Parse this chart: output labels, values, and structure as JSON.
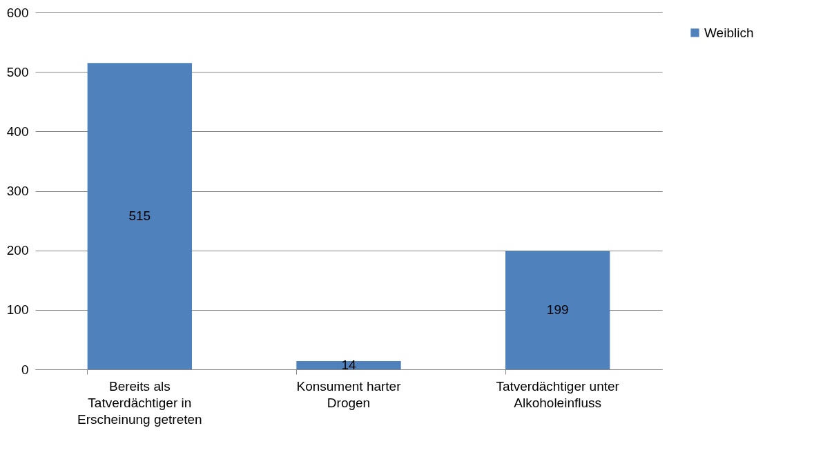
{
  "chart_data": {
    "type": "bar",
    "categories": [
      "Bereits als Tatverdächtiger in Erscheinung getreten",
      "Konsument harter Drogen",
      "Tatverdächtiger unter Alkoholeinfluss"
    ],
    "series": [
      {
        "name": "Weiblich",
        "color": "#4f81bd",
        "values": [
          515,
          14,
          199
        ]
      }
    ],
    "ylim": [
      0,
      600
    ],
    "yticks": [
      0,
      100,
      200,
      300,
      400,
      500,
      600
    ],
    "grid": "y",
    "legend": "right",
    "data_labels": true
  }
}
